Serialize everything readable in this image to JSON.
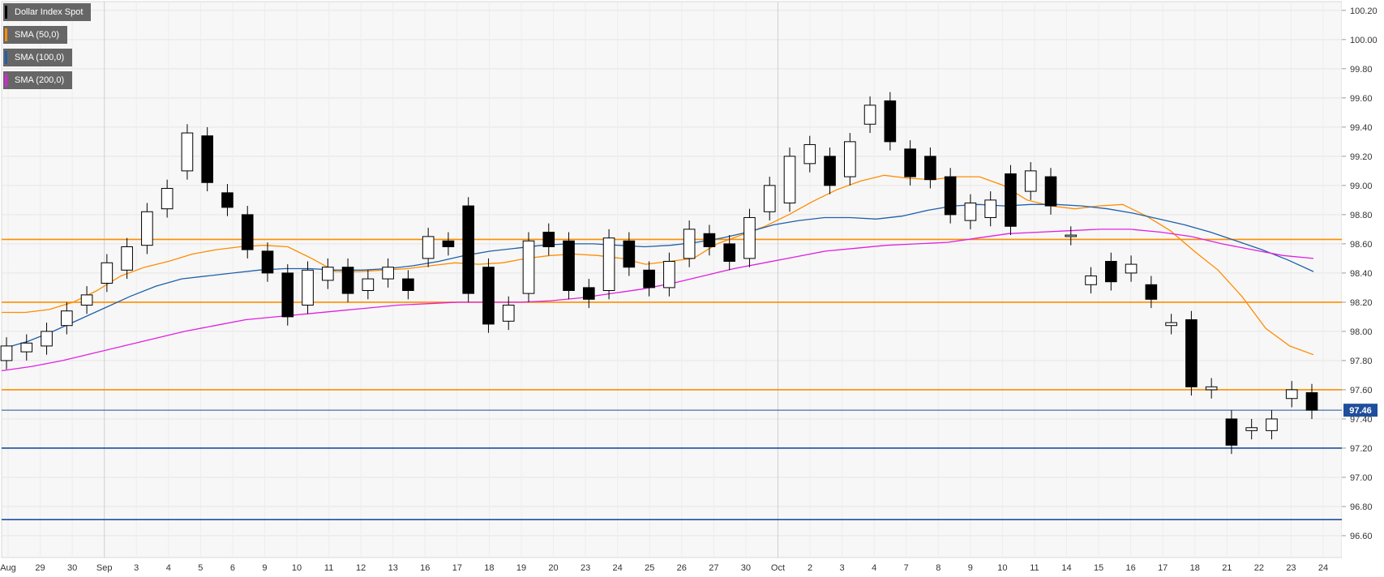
{
  "chart_data": {
    "type": "candlestick",
    "title": "",
    "price_label": "97.46",
    "y_ticks": [
      "100.20",
      "100.00",
      "99.80",
      "99.60",
      "99.40",
      "99.20",
      "99.00",
      "98.80",
      "98.60",
      "98.40",
      "98.20",
      "98.00",
      "97.80",
      "97.60",
      "97.40",
      "97.20",
      "97.00",
      "96.80",
      "96.60"
    ],
    "ylim": [
      96.45,
      100.26
    ],
    "x_ticks": [
      "Aug",
      "29",
      "30",
      "Sep",
      "3",
      "4",
      "5",
      "6",
      "9",
      "10",
      "11",
      "12",
      "13",
      "16",
      "17",
      "18",
      "19",
      "20",
      "23",
      "24",
      "25",
      "26",
      "27",
      "30",
      "Oct",
      "2",
      "3",
      "4",
      "7",
      "8",
      "9",
      "10",
      "11",
      "14",
      "15",
      "16",
      "17",
      "18",
      "21",
      "22",
      "23",
      "24"
    ],
    "grid": true,
    "legend_position": "top-left",
    "horizontal_levels": [
      {
        "value": 98.63,
        "color": "#ff8c00"
      },
      {
        "value": 98.2,
        "color": "#ff8c00"
      },
      {
        "value": 97.6,
        "color": "#ff8c00"
      },
      {
        "value": 97.2,
        "color": "#1f4e9c"
      },
      {
        "value": 96.71,
        "color": "#1f4e9c"
      },
      {
        "value": 97.46,
        "color": "#1f4e9c"
      }
    ],
    "legend": [
      {
        "label": "Dollar Index Spot",
        "color": "#000000"
      },
      {
        "label": "SMA (50,0)",
        "color": "#ff8c00"
      },
      {
        "label": "SMA (100,0)",
        "color": "#1f5fa8"
      },
      {
        "label": "SMA (200,0)",
        "color": "#e020e0"
      }
    ],
    "series": [
      {
        "name": "SMA (50,0)",
        "color": "#ff8c00",
        "values": [
          98.13,
          98.13,
          98.15,
          98.2,
          98.28,
          98.38,
          98.44,
          98.48,
          98.53,
          98.56,
          98.58,
          98.59,
          98.58,
          98.5,
          98.41,
          98.41,
          98.42,
          98.43,
          98.45,
          98.47,
          98.46,
          98.47,
          98.5,
          98.52,
          98.53,
          98.52,
          98.5,
          98.46,
          98.48,
          98.5,
          98.6,
          98.66,
          98.72,
          98.8,
          98.89,
          98.97,
          99.03,
          99.07,
          99.05,
          99.04,
          99.06,
          99.06,
          99.0,
          98.9,
          98.86,
          98.84,
          98.86,
          98.87,
          98.79,
          98.69,
          98.55,
          98.42,
          98.24,
          98.02,
          97.9,
          97.84
        ]
      },
      {
        "name": "SMA (100,0)",
        "color": "#1f5fa8",
        "values": [
          97.88,
          97.93,
          98.0,
          98.08,
          98.16,
          98.24,
          98.31,
          98.36,
          98.38,
          98.4,
          98.42,
          98.43,
          98.43,
          98.42,
          98.42,
          98.43,
          98.45,
          98.48,
          98.52,
          98.55,
          98.57,
          98.59,
          98.6,
          98.6,
          98.59,
          98.58,
          98.59,
          98.61,
          98.64,
          98.68,
          98.73,
          98.76,
          98.78,
          98.78,
          98.77,
          98.79,
          98.83,
          98.86,
          98.87,
          98.86,
          98.87,
          98.87,
          98.86,
          98.84,
          98.81,
          98.77,
          98.73,
          98.68,
          98.62,
          98.56,
          98.49,
          98.41
        ]
      },
      {
        "name": "SMA (200,0)",
        "color": "#e020e0",
        "values": [
          97.73,
          97.76,
          97.8,
          97.85,
          97.9,
          97.95,
          98.0,
          98.04,
          98.08,
          98.1,
          98.12,
          98.14,
          98.16,
          98.18,
          98.19,
          98.2,
          98.2,
          98.2,
          98.21,
          98.23,
          98.26,
          98.29,
          98.33,
          98.38,
          98.43,
          98.47,
          98.51,
          98.55,
          98.57,
          98.59,
          98.6,
          98.61,
          98.64,
          98.67,
          98.68,
          98.69,
          98.7,
          98.7,
          98.68,
          98.65,
          98.6,
          98.56,
          98.52,
          98.5
        ]
      }
    ],
    "candles": [
      [
        97.8,
        97.9
      ],
      [
        97.86,
        97.92
      ],
      [
        97.9,
        98.0
      ],
      [
        98.04,
        98.14
      ],
      [
        98.18,
        98.25
      ],
      [
        98.33,
        98.47
      ],
      [
        98.42,
        98.58
      ],
      [
        98.59,
        98.82
      ],
      [
        98.84,
        98.98
      ],
      [
        99.1,
        99.36
      ],
      [
        99.34,
        99.02
      ],
      [
        98.95,
        98.85
      ],
      [
        98.8,
        98.56
      ],
      [
        98.55,
        98.4
      ],
      [
        98.4,
        98.1
      ],
      [
        98.18,
        98.42
      ],
      [
        98.35,
        98.44
      ],
      [
        98.44,
        98.26
      ],
      [
        98.28,
        98.36
      ],
      [
        98.36,
        98.44
      ],
      [
        98.36,
        98.28
      ],
      [
        98.5,
        98.65
      ],
      [
        98.62,
        98.58
      ],
      [
        98.86,
        98.26
      ],
      [
        98.44,
        98.05
      ],
      [
        98.07,
        98.18
      ],
      [
        98.26,
        98.62
      ],
      [
        98.68,
        98.58
      ],
      [
        98.62,
        98.28
      ],
      [
        98.3,
        98.22
      ],
      [
        98.28,
        98.64
      ],
      [
        98.62,
        98.44
      ],
      [
        98.42,
        98.3
      ],
      [
        98.3,
        98.48
      ],
      [
        98.5,
        98.7
      ],
      [
        98.67,
        98.58
      ],
      [
        98.6,
        98.48
      ],
      [
        98.5,
        98.78
      ],
      [
        98.82,
        99.0
      ],
      [
        98.88,
        99.2
      ],
      [
        99.15,
        99.28
      ],
      [
        99.2,
        99.0
      ],
      [
        99.06,
        99.3
      ],
      [
        99.42,
        99.55
      ],
      [
        99.58,
        99.3
      ],
      [
        99.25,
        99.06
      ],
      [
        99.2,
        99.04
      ],
      [
        99.06,
        98.8
      ],
      [
        98.76,
        98.88
      ],
      [
        98.78,
        98.9
      ],
      [
        99.08,
        98.72
      ],
      [
        98.96,
        99.1
      ],
      [
        99.06,
        98.86
      ],
      [
        98.65,
        98.66
      ],
      [
        98.32,
        98.38
      ],
      [
        98.48,
        98.34
      ],
      [
        98.4,
        98.46
      ],
      [
        98.32,
        98.22
      ],
      [
        98.04,
        98.06
      ],
      [
        98.08,
        97.62
      ],
      [
        97.6,
        97.62
      ],
      [
        97.4,
        97.22
      ],
      [
        97.32,
        97.34
      ],
      [
        97.32,
        97.4
      ],
      [
        97.54,
        97.6
      ],
      [
        97.58,
        97.46
      ]
    ]
  }
}
